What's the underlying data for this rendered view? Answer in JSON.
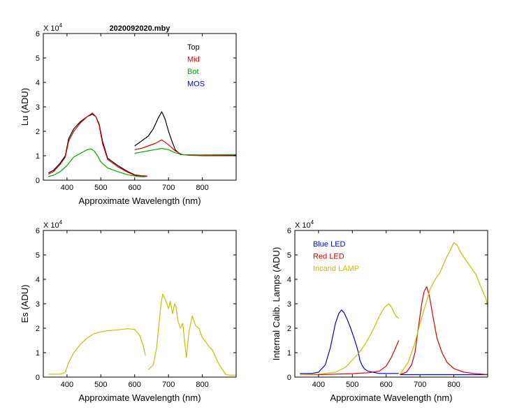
{
  "chart_data": [
    {
      "id": "lu",
      "type": "line",
      "title": "2020092020.mby",
      "xlabel": "Approximate Wavelength (nm)",
      "ylabel": "Lu (ADU)",
      "yscale_label": "X 10",
      "yscale_exp": "4",
      "xlim": [
        330,
        900
      ],
      "ylim": [
        0,
        6
      ],
      "xticks": [
        400,
        500,
        600,
        700,
        800
      ],
      "yticks": [
        0,
        1,
        2,
        3,
        4,
        5,
        6
      ],
      "legend_position": "top-right",
      "series": [
        {
          "name": "Top",
          "color": "#000000",
          "segments": [
            {
              "x": [
                345,
                360,
                380,
                395,
                405,
                420,
                440,
                460,
                475,
                485,
                495,
                505,
                520,
                550,
                580,
                600,
                620,
                637
              ],
              "y": [
                0.3,
                0.4,
                0.7,
                1.0,
                1.7,
                2.1,
                2.4,
                2.6,
                2.7,
                2.6,
                2.3,
                1.6,
                0.9,
                0.6,
                0.35,
                0.22,
                0.18,
                0.16
              ]
            },
            {
              "x": [
                600,
                620,
                640,
                655,
                670,
                680,
                690,
                700,
                710,
                720,
                735,
                760,
                800,
                850,
                900
              ],
              "y": [
                1.4,
                1.6,
                1.8,
                2.1,
                2.55,
                2.8,
                2.5,
                2.0,
                1.6,
                1.25,
                1.05,
                1.03,
                1.02,
                1.02,
                1.02
              ]
            }
          ]
        },
        {
          "name": "Mid",
          "color": "#dd0000",
          "segments": [
            {
              "x": [
                345,
                360,
                380,
                395,
                405,
                420,
                440,
                460,
                475,
                485,
                495,
                505,
                520,
                550,
                580,
                600,
                620,
                637
              ],
              "y": [
                0.25,
                0.35,
                0.65,
                0.95,
                1.6,
                2.0,
                2.35,
                2.6,
                2.75,
                2.6,
                2.25,
                1.5,
                0.85,
                0.55,
                0.32,
                0.2,
                0.17,
                0.15
              ]
            },
            {
              "x": [
                600,
                620,
                640,
                660,
                680,
                700,
                720,
                740,
                760,
                800,
                850,
                900
              ],
              "y": [
                1.25,
                1.3,
                1.4,
                1.5,
                1.65,
                1.45,
                1.2,
                1.05,
                1.02,
                1.0,
                1.0,
                1.0
              ]
            }
          ]
        },
        {
          "name": "Bot",
          "color": "#00aa00",
          "segments": [
            {
              "x": [
                345,
                360,
                380,
                400,
                420,
                440,
                460,
                470,
                480,
                490,
                500,
                520,
                550,
                580,
                610,
                630
              ],
              "y": [
                0.15,
                0.2,
                0.35,
                0.6,
                0.95,
                1.1,
                1.25,
                1.28,
                1.2,
                1.0,
                0.75,
                0.5,
                0.35,
                0.22,
                0.15,
                0.13
              ]
            },
            {
              "x": [
                600,
                620,
                640,
                660,
                680,
                700,
                720,
                740,
                760,
                800,
                850,
                900
              ],
              "y": [
                1.1,
                1.15,
                1.2,
                1.25,
                1.3,
                1.25,
                1.12,
                1.05,
                1.04,
                1.03,
                1.04,
                1.05
              ]
            }
          ]
        },
        {
          "name": "MOS",
          "color": "#0000dd",
          "segments": []
        }
      ]
    },
    {
      "id": "es",
      "type": "line",
      "title": "",
      "xlabel": "Approximate Wavelength (nm)",
      "ylabel": "Es  (ADU)",
      "yscale_label": "X 10",
      "yscale_exp": "4",
      "xlim": [
        330,
        900
      ],
      "ylim": [
        0,
        6
      ],
      "xticks": [
        400,
        500,
        600,
        700,
        800
      ],
      "yticks": [
        0,
        1,
        2,
        3,
        4,
        5,
        6
      ],
      "series": [
        {
          "name": "Es",
          "color": "#c8c000",
          "segments": [
            {
              "x": [
                345,
                380,
                395,
                405,
                420,
                440,
                460,
                480,
                500,
                520,
                540,
                560,
                580,
                600,
                615,
                625,
                632
              ],
              "y": [
                0.12,
                0.12,
                0.2,
                0.6,
                1.0,
                1.35,
                1.6,
                1.78,
                1.85,
                1.9,
                1.92,
                1.95,
                1.98,
                1.95,
                1.7,
                1.3,
                0.9
              ]
            },
            {
              "x": [
                640,
                655,
                665,
                672,
                678,
                683,
                690,
                700,
                705,
                712,
                718,
                722,
                728,
                735,
                742,
                748,
                753,
                760,
                770,
                780,
                790,
                800,
                810,
                820,
                830,
                840,
                850,
                860,
                870,
                880,
                890,
                900
              ],
              "y": [
                0.3,
                0.5,
                1.2,
                2.2,
                3.0,
                3.4,
                3.2,
                2.8,
                3.1,
                2.6,
                3.0,
                2.9,
                2.3,
                2.0,
                2.2,
                1.4,
                0.8,
                1.8,
                2.5,
                2.1,
                2.0,
                1.6,
                1.45,
                1.25,
                1.1,
                0.8,
                0.5,
                0.3,
                0.1,
                0.08,
                0.08,
                0.08
              ]
            }
          ]
        }
      ]
    },
    {
      "id": "lamps",
      "type": "line",
      "title": "",
      "xlabel": "Approximate Wavelength (nm)",
      "ylabel": "Internal Calib. Lamps  (ADU)",
      "yscale_label": "X 10",
      "yscale_exp": "4",
      "xlim": [
        330,
        900
      ],
      "ylim": [
        0,
        6
      ],
      "xticks": [
        400,
        500,
        600,
        700,
        800
      ],
      "yticks": [
        0,
        1,
        2,
        3,
        4,
        5,
        6
      ],
      "legend_position": "top-left",
      "series": [
        {
          "name": "Blue LED",
          "color": "#0000dd",
          "segments": [
            {
              "x": [
                345,
                380,
                400,
                420,
                435,
                450,
                460,
                468,
                475,
                485,
                495,
                505,
                512,
                518,
                522,
                528,
                535,
                545,
                560,
                580,
                600,
                620,
                637
              ],
              "y": [
                0.15,
                0.15,
                0.2,
                0.5,
                1.2,
                2.2,
                2.6,
                2.75,
                2.65,
                2.35,
                2.0,
                1.6,
                1.3,
                1.0,
                0.7,
                0.5,
                0.35,
                0.25,
                0.2,
                0.15,
                0.15,
                0.15,
                0.15
              ]
            },
            {
              "x": [
                640,
                700,
                760,
                820,
                900
              ],
              "y": [
                0.1,
                0.1,
                0.1,
                0.1,
                0.1
              ]
            }
          ]
        },
        {
          "name": "Red LED",
          "color": "#dd0000",
          "segments": [
            {
              "x": [
                345,
                400,
                450,
                500,
                550,
                580,
                600,
                615,
                625,
                637
              ],
              "y": [
                0.1,
                0.1,
                0.12,
                0.14,
                0.18,
                0.25,
                0.45,
                0.8,
                1.1,
                1.5
              ]
            },
            {
              "x": [
                640,
                660,
                675,
                685,
                695,
                705,
                712,
                720,
                728,
                738,
                750,
                765,
                780,
                800,
                830,
                860,
                900
              ],
              "y": [
                0.1,
                0.2,
                0.5,
                1.0,
                2.0,
                3.0,
                3.5,
                3.7,
                3.3,
                2.5,
                1.6,
                1.0,
                0.6,
                0.35,
                0.2,
                0.15,
                0.1
              ]
            }
          ]
        },
        {
          "name": "Incand LAMP",
          "color": "#c8c000",
          "segments": [
            {
              "x": [
                345,
                400,
                450,
                480,
                500,
                520,
                540,
                560,
                580,
                595,
                608,
                618,
                628,
                637
              ],
              "y": [
                0.1,
                0.12,
                0.2,
                0.4,
                0.7,
                1.0,
                1.4,
                1.9,
                2.5,
                2.85,
                3.0,
                2.8,
                2.5,
                2.4
              ]
            },
            {
              "x": [
                640,
                665,
                685,
                700,
                715,
                730,
                745,
                760,
                775,
                790,
                800,
                810,
                820,
                835,
                850,
                865,
                880,
                895,
                900
              ],
              "y": [
                0.1,
                0.6,
                1.4,
                2.2,
                2.9,
                3.6,
                4.0,
                4.3,
                4.8,
                5.2,
                5.5,
                5.4,
                5.1,
                4.8,
                4.5,
                4.2,
                3.7,
                3.2,
                2.9
              ]
            }
          ]
        }
      ]
    }
  ]
}
